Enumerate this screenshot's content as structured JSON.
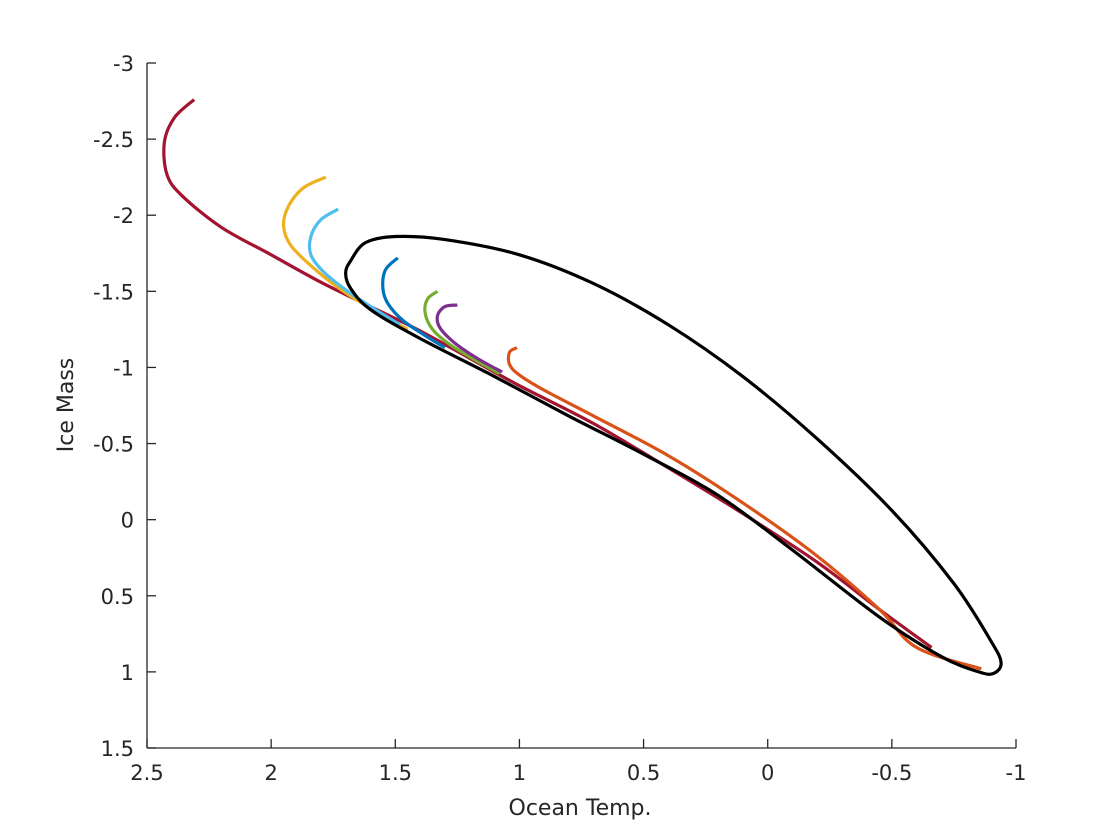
{
  "chart_data": {
    "type": "line",
    "title": "",
    "xlabel": "Ocean Temp.",
    "ylabel": "Ice Mass",
    "xlim": [
      2.5,
      -1
    ],
    "ylim": [
      1.5,
      -3
    ],
    "x_reversed": true,
    "y_reversed": true,
    "grid": false,
    "legend": "none",
    "xticks": [
      2.5,
      2,
      1.5,
      1,
      0.5,
      0,
      -0.5,
      -1
    ],
    "xtick_labels": [
      "2.5",
      "2",
      "1.5",
      "1",
      "0.5",
      "0",
      "-0.5",
      "-1"
    ],
    "yticks": [
      -3,
      -2.5,
      -2,
      -1.5,
      -1,
      -0.5,
      0,
      0.5,
      1,
      1.5
    ],
    "ytick_labels": [
      "-3",
      "-2.5",
      "-2",
      "-1.5",
      "-1",
      "-0.5",
      "0",
      "0.5",
      "1",
      "1.5"
    ],
    "series": [
      {
        "color": "#A2142F",
        "points": [
          [
            2.31,
            -2.76
          ],
          [
            2.39,
            -2.64
          ],
          [
            2.43,
            -2.48
          ],
          [
            2.42,
            -2.27
          ],
          [
            2.36,
            -2.13
          ],
          [
            2.2,
            -1.92
          ],
          [
            2.0,
            -1.74
          ],
          [
            1.8,
            -1.56
          ],
          [
            1.6,
            -1.4
          ],
          [
            1.4,
            -1.24
          ],
          [
            1.2,
            -1.06
          ],
          [
            1.0,
            -0.88
          ],
          [
            0.7,
            -0.63
          ],
          [
            0.4,
            -0.34
          ],
          [
            0.1,
            -0.04
          ],
          [
            -0.2,
            0.28
          ],
          [
            -0.45,
            0.59
          ],
          [
            -0.66,
            0.84
          ]
        ]
      },
      {
        "color": "#EDB120",
        "points": [
          [
            1.78,
            -2.25
          ],
          [
            1.87,
            -2.18
          ],
          [
            1.93,
            -2.06
          ],
          [
            1.95,
            -1.93
          ],
          [
            1.92,
            -1.8
          ],
          [
            1.82,
            -1.64
          ],
          [
            1.7,
            -1.49
          ],
          [
            1.55,
            -1.34
          ],
          [
            1.45,
            -1.25
          ]
        ]
      },
      {
        "color": "#4DBEEE",
        "points": [
          [
            1.73,
            -2.04
          ],
          [
            1.8,
            -1.97
          ],
          [
            1.84,
            -1.86
          ],
          [
            1.84,
            -1.74
          ],
          [
            1.79,
            -1.63
          ],
          [
            1.7,
            -1.51
          ],
          [
            1.58,
            -1.38
          ],
          [
            1.48,
            -1.28
          ]
        ]
      },
      {
        "color": "#0072BD",
        "points": [
          [
            1.49,
            -1.72
          ],
          [
            1.54,
            -1.64
          ],
          [
            1.55,
            -1.52
          ],
          [
            1.53,
            -1.42
          ],
          [
            1.47,
            -1.31
          ],
          [
            1.38,
            -1.21
          ],
          [
            1.3,
            -1.13
          ]
        ]
      },
      {
        "color": "#77AC30",
        "points": [
          [
            1.33,
            -1.5
          ],
          [
            1.37,
            -1.45
          ],
          [
            1.38,
            -1.36
          ],
          [
            1.35,
            -1.25
          ],
          [
            1.28,
            -1.15
          ],
          [
            1.18,
            -1.05
          ],
          [
            1.08,
            -0.96
          ]
        ]
      },
      {
        "color": "#7E2F8E",
        "points": [
          [
            1.25,
            -1.41
          ],
          [
            1.3,
            -1.4
          ],
          [
            1.33,
            -1.34
          ],
          [
            1.32,
            -1.26
          ],
          [
            1.26,
            -1.16
          ],
          [
            1.17,
            -1.06
          ],
          [
            1.07,
            -0.97
          ]
        ]
      },
      {
        "color": "#D95319",
        "points": [
          [
            1.01,
            -1.13
          ],
          [
            1.04,
            -1.1
          ],
          [
            1.04,
            -1.02
          ],
          [
            1.0,
            -0.95
          ],
          [
            0.9,
            -0.85
          ],
          [
            0.7,
            -0.68
          ],
          [
            0.4,
            -0.42
          ],
          [
            0.1,
            -0.11
          ],
          [
            -0.2,
            0.24
          ],
          [
            -0.45,
            0.59
          ],
          [
            -0.6,
            0.84
          ],
          [
            -0.86,
            0.98
          ]
        ]
      },
      {
        "color": "#000000",
        "closed": true,
        "points": [
          [
            1.68,
            -1.7
          ],
          [
            1.62,
            -1.82
          ],
          [
            1.5,
            -1.86
          ],
          [
            1.3,
            -1.84
          ],
          [
            1.0,
            -1.74
          ],
          [
            0.7,
            -1.55
          ],
          [
            0.4,
            -1.28
          ],
          [
            0.1,
            -0.94
          ],
          [
            -0.2,
            -0.53
          ],
          [
            -0.5,
            -0.06
          ],
          [
            -0.75,
            0.42
          ],
          [
            -0.9,
            0.8
          ],
          [
            -0.94,
            0.94
          ],
          [
            -0.91,
            1.01
          ],
          [
            -0.85,
            1.0
          ],
          [
            -0.7,
            0.9
          ],
          [
            -0.45,
            0.64
          ],
          [
            -0.1,
            0.2
          ],
          [
            0.2,
            -0.16
          ],
          [
            0.5,
            -0.43
          ],
          [
            0.8,
            -0.68
          ],
          [
            1.1,
            -0.94
          ],
          [
            1.4,
            -1.19
          ],
          [
            1.6,
            -1.38
          ],
          [
            1.68,
            -1.52
          ],
          [
            1.7,
            -1.62
          ]
        ]
      }
    ]
  }
}
